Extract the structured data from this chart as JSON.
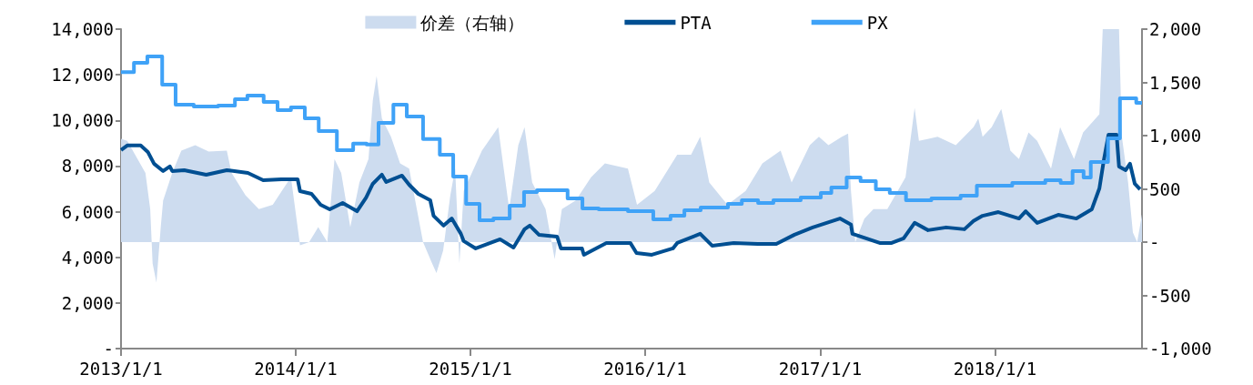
{
  "chart_data": {
    "type": "line",
    "xlim": [
      "2013-01-01",
      "2018-11-04"
    ],
    "xticks": [
      {
        "value": "2013-01-01",
        "label": "2013/1/1"
      },
      {
        "value": "2014-01-01",
        "label": "2014/1/1"
      },
      {
        "value": "2015-01-01",
        "label": "2015/1/1"
      },
      {
        "value": "2016-01-01",
        "label": "2016/1/1"
      },
      {
        "value": "2017-01-01",
        "label": "2017/1/1"
      },
      {
        "value": "2018-01-01",
        "label": "2018/1/1"
      }
    ],
    "ylim": [
      0,
      14000
    ],
    "yticks": [
      {
        "value": 0,
        "label": "-"
      },
      {
        "value": 2000,
        "label": "2,000"
      },
      {
        "value": 4000,
        "label": "4,000"
      },
      {
        "value": 6000,
        "label": "6,000"
      },
      {
        "value": 8000,
        "label": "8,000"
      },
      {
        "value": 10000,
        "label": "10,000"
      },
      {
        "value": 12000,
        "label": "12,000"
      },
      {
        "value": 14000,
        "label": "14,000"
      }
    ],
    "y2lim": [
      -1000,
      2000
    ],
    "y2ticks": [
      {
        "value": -1000,
        "label": "-1,000"
      },
      {
        "value": -500,
        "label": "-500"
      },
      {
        "value": 0,
        "label": "-"
      },
      {
        "value": 500,
        "label": "500"
      },
      {
        "value": 1000,
        "label": "1,000"
      },
      {
        "value": 1500,
        "label": "1,500"
      },
      {
        "value": 2000,
        "label": "2,000"
      }
    ],
    "grid": false,
    "legend": "top",
    "marker": "none",
    "line_style": "solid",
    "series": [
      {
        "name": "价差（右轴）",
        "type": "area",
        "axis": "y2",
        "color": "#cddcef",
        "x": [
          "2013-01-01",
          "2013-01-14",
          "2013-02-21",
          "2013-03-03",
          "2013-03-08",
          "2013-03-16",
          "2013-03-25",
          "2013-03-30",
          "2013-04-18",
          "2013-05-07",
          "2013-06-05",
          "2013-07-03",
          "2013-08-10",
          "2013-08-20",
          "2013-09-18",
          "2013-10-16",
          "2013-11-14",
          "2013-12-03",
          "2013-12-22",
          "2014-01-10",
          "2014-01-29",
          "2014-02-17",
          "2014-03-08",
          "2014-03-23",
          "2014-04-06",
          "2014-04-25",
          "2014-05-14",
          "2014-06-02",
          "2014-06-11",
          "2014-06-19",
          "2014-06-30",
          "2014-07-19",
          "2014-08-07",
          "2014-08-26",
          "2014-09-11",
          "2014-09-24",
          "2014-10-13",
          "2014-10-22",
          "2014-11-05",
          "2014-11-20",
          "2014-11-30",
          "2014-12-09",
          "2014-12-18",
          "2015-01-25",
          "2015-02-28",
          "2015-03-10",
          "2015-03-23",
          "2015-04-11",
          "2015-04-24",
          "2015-05-10",
          "2015-06-07",
          "2015-06-26",
          "2015-07-11",
          "2015-08-09",
          "2015-09-10",
          "2015-10-09",
          "2015-11-26",
          "2015-12-15",
          "2016-01-21",
          "2016-03-08",
          "2016-04-06",
          "2016-04-25",
          "2016-05-14",
          "2016-06-21",
          "2016-07-29",
          "2016-09-02",
          "2016-10-10",
          "2016-11-02",
          "2016-12-10",
          "2016-12-29",
          "2017-01-18",
          "2017-02-15",
          "2017-02-28",
          "2017-03-06",
          "2017-03-15",
          "2017-04-03",
          "2017-04-22",
          "2017-05-21",
          "2017-06-28",
          "2017-07-17",
          "2017-07-26",
          "2017-09-03",
          "2017-10-11",
          "2017-11-17",
          "2017-11-27",
          "2017-12-06",
          "2017-12-25",
          "2018-01-14",
          "2018-02-02",
          "2018-02-20",
          "2018-03-12",
          "2018-03-30",
          "2018-04-28",
          "2018-05-17",
          "2018-06-15",
          "2018-07-04",
          "2018-07-22",
          "2018-08-07",
          "2018-08-14",
          "2018-09-17",
          "2018-09-23",
          "2018-10-06",
          "2018-10-16",
          "2018-10-25",
          "2018-11-04"
        ],
        "values": [
          970,
          950,
          650,
          310,
          -200,
          -380,
          140,
          390,
          650,
          860,
          910,
          850,
          860,
          650,
          440,
          310,
          350,
          480,
          610,
          -30,
          0,
          140,
          0,
          780,
          650,
          140,
          560,
          780,
          1330,
          1560,
          1160,
          990,
          740,
          690,
          310,
          0,
          -200,
          -290,
          -80,
          440,
          690,
          -200,
          480,
          860,
          1080,
          740,
          310,
          910,
          1080,
          560,
          310,
          -160,
          310,
          390,
          610,
          740,
          690,
          350,
          480,
          820,
          820,
          990,
          560,
          350,
          480,
          740,
          860,
          560,
          910,
          990,
          910,
          990,
          1020,
          480,
          0,
          220,
          310,
          310,
          610,
          1260,
          950,
          990,
          910,
          1080,
          1160,
          990,
          1080,
          1250,
          860,
          780,
          1030,
          950,
          690,
          1080,
          780,
          1030,
          1120,
          1200,
          2000,
          2000,
          990,
          560,
          90,
          0,
          260
        ]
      },
      {
        "name": "PTA",
        "color": "#004f92",
        "x": [
          "2013-01-01",
          "2013-01-14",
          "2013-02-11",
          "2013-02-26",
          "2013-03-11",
          "2013-03-30",
          "2013-04-13",
          "2013-04-18",
          "2013-05-13",
          "2013-06-28",
          "2013-08-10",
          "2013-09-23",
          "2013-10-25",
          "2013-12-02",
          "2014-01-05",
          "2014-01-10",
          "2014-02-03",
          "2014-02-22",
          "2014-03-13",
          "2014-04-09",
          "2014-05-09",
          "2014-05-28",
          "2014-06-11",
          "2014-06-30",
          "2014-07-09",
          "2014-08-11",
          "2014-08-26",
          "2014-09-14",
          "2014-10-09",
          "2014-10-16",
          "2014-11-06",
          "2014-11-23",
          "2014-12-12",
          "2014-12-18",
          "2015-01-12",
          "2015-03-04",
          "2015-04-01",
          "2015-04-24",
          "2015-05-05",
          "2015-05-24",
          "2015-07-01",
          "2015-07-09",
          "2015-08-22",
          "2015-08-26",
          "2015-10-12",
          "2015-12-01",
          "2015-12-14",
          "2016-01-15",
          "2016-02-28",
          "2016-03-08",
          "2016-04-25",
          "2016-05-20",
          "2016-07-04",
          "2016-08-23",
          "2016-10-01",
          "2016-11-08",
          "2016-12-16",
          "2017-02-11",
          "2017-03-06",
          "2017-03-09",
          "2017-05-05",
          "2017-05-30",
          "2017-06-24",
          "2017-07-17",
          "2017-08-14",
          "2017-09-21",
          "2017-10-29",
          "2017-11-17",
          "2017-12-06",
          "2018-01-08",
          "2018-02-20",
          "2018-03-06",
          "2018-03-30",
          "2018-05-13",
          "2018-06-20",
          "2018-07-22",
          "2018-08-07",
          "2018-08-16",
          "2018-08-26",
          "2018-09-12",
          "2018-09-17",
          "2018-10-01",
          "2018-10-10",
          "2018-10-20",
          "2018-10-31"
        ],
        "values": [
          8700,
          8900,
          8900,
          8620,
          8100,
          7780,
          7980,
          7780,
          7820,
          7620,
          7820,
          7700,
          7380,
          7420,
          7420,
          6900,
          6780,
          6300,
          6100,
          6380,
          6020,
          6620,
          7220,
          7620,
          7300,
          7580,
          7180,
          6780,
          6500,
          5820,
          5390,
          5700,
          5030,
          4710,
          4390,
          4790,
          4430,
          5230,
          5390,
          4990,
          4910,
          4390,
          4390,
          4110,
          4630,
          4630,
          4190,
          4110,
          4390,
          4630,
          5030,
          4510,
          4630,
          4590,
          4590,
          4990,
          5310,
          5700,
          5430,
          5030,
          4630,
          4630,
          4830,
          5510,
          5190,
          5310,
          5230,
          5590,
          5820,
          5980,
          5700,
          6020,
          5510,
          5860,
          5700,
          6100,
          7020,
          8220,
          9370,
          9370,
          7980,
          7820,
          8100,
          7220,
          6980
        ]
      },
      {
        "name": "PX",
        "type": "step",
        "color": "#3fa2f7",
        "x": [
          "2013-01-01",
          "2013-01-28",
          "2013-02-25",
          "2013-03-28",
          "2013-04-25",
          "2013-06-02",
          "2013-07-23",
          "2013-08-27",
          "2013-09-22",
          "2013-10-26",
          "2013-11-24",
          "2013-12-22",
          "2014-01-20",
          "2014-02-18",
          "2014-03-28",
          "2014-05-01",
          "2014-05-29",
          "2014-06-23",
          "2014-07-24",
          "2014-08-21",
          "2014-09-24",
          "2014-10-29",
          "2014-11-26",
          "2014-12-23",
          "2015-01-20",
          "2015-02-18",
          "2015-03-24",
          "2015-04-23",
          "2015-05-20",
          "2015-07-23",
          "2015-08-23",
          "2015-09-26",
          "2015-11-26",
          "2016-01-18",
          "2016-02-23",
          "2016-03-23",
          "2016-04-26",
          "2016-06-22",
          "2016-07-21",
          "2016-08-24",
          "2016-09-25",
          "2016-11-21",
          "2017-01-02",
          "2017-01-24",
          "2017-02-25",
          "2017-03-26",
          "2017-04-27",
          "2017-05-26",
          "2017-06-29",
          "2017-08-21",
          "2017-10-21",
          "2017-11-24",
          "2018-02-06",
          "2018-04-16",
          "2018-05-18",
          "2018-06-12",
          "2018-07-05",
          "2018-07-20",
          "2018-08-25",
          "2018-09-19",
          "2018-10-23",
          "2018-11-04"
        ],
        "values": [
          12120,
          12520,
          12800,
          11570,
          10690,
          10610,
          10650,
          10930,
          11090,
          10810,
          10450,
          10570,
          10090,
          9530,
          8700,
          8980,
          8940,
          9890,
          10690,
          10170,
          9180,
          8500,
          7540,
          6340,
          5620,
          5700,
          6260,
          6860,
          6940,
          6580,
          6140,
          6100,
          6020,
          5660,
          5820,
          6060,
          6180,
          6340,
          6500,
          6380,
          6500,
          6620,
          6820,
          7060,
          7500,
          7340,
          6980,
          6820,
          6500,
          6580,
          6700,
          7140,
          7260,
          7380,
          7260,
          7780,
          7500,
          8180,
          9210,
          10970,
          10770,
          10770
        ]
      }
    ]
  }
}
